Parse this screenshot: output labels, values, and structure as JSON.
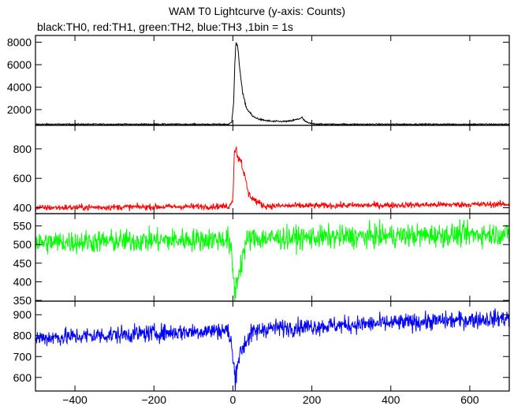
{
  "title": "WAM T0 Lightcurve (y-axis: Counts)",
  "subtitle": "black:TH0, red:TH1, green:TH2, blue:TH3 ,1bin = 1s",
  "chart_data": {
    "type": "line",
    "x_range": [
      -500,
      700
    ],
    "x_ticks": [
      -400,
      -200,
      0,
      200,
      400,
      600
    ],
    "grid": false,
    "panels": [
      {
        "name": "TH0",
        "color": "#000000",
        "ylim": [
          600,
          8600
        ],
        "y_ticks": [
          2000,
          4000,
          6000,
          8000
        ],
        "baseline": 700,
        "noise": 40,
        "trend": 0,
        "profile": [
          [
            -500,
            0
          ],
          [
            -10,
            0
          ],
          [
            -3,
            200
          ],
          [
            2,
            2000
          ],
          [
            5,
            5500
          ],
          [
            8,
            7300
          ],
          [
            12,
            6900
          ],
          [
            18,
            4800
          ],
          [
            25,
            2700
          ],
          [
            35,
            1400
          ],
          [
            50,
            700
          ],
          [
            70,
            400
          ],
          [
            100,
            250
          ],
          [
            140,
            250
          ],
          [
            150,
            320
          ],
          [
            165,
            450
          ],
          [
            175,
            600
          ],
          [
            180,
            350
          ],
          [
            190,
            120
          ],
          [
            200,
            60
          ],
          [
            220,
            0
          ],
          [
            700,
            0
          ]
        ]
      },
      {
        "name": "TH1",
        "color": "#ff0000",
        "ylim": [
          360,
          960
        ],
        "y_ticks": [
          400,
          600,
          800
        ],
        "baseline": 400,
        "noise": 15,
        "trend": 0.02,
        "profile": [
          [
            -500,
            0
          ],
          [
            -8,
            0
          ],
          [
            0,
            60
          ],
          [
            4,
            380
          ],
          [
            8,
            400
          ],
          [
            12,
            330
          ],
          [
            20,
            320
          ],
          [
            30,
            200
          ],
          [
            40,
            80
          ],
          [
            60,
            30
          ],
          [
            80,
            0
          ],
          [
            700,
            0
          ]
        ]
      },
      {
        "name": "TH2",
        "color": "#00ff00",
        "ylim": [
          348,
          583
        ],
        "y_ticks": [
          350,
          400,
          450,
          500,
          550
        ],
        "baseline": 505,
        "noise": 22,
        "trend": 0.02,
        "profile": [
          [
            -500,
            0
          ],
          [
            -12,
            0
          ],
          [
            -4,
            -40
          ],
          [
            2,
            -110
          ],
          [
            6,
            -150
          ],
          [
            10,
            -110
          ],
          [
            18,
            -80
          ],
          [
            28,
            -30
          ],
          [
            40,
            0
          ],
          [
            700,
            0
          ]
        ]
      },
      {
        "name": "TH3",
        "color": "#0000ff",
        "ylim": [
          535,
          965
        ],
        "y_ticks": [
          600,
          700,
          800,
          900
        ],
        "baseline": 788,
        "noise": 30,
        "trend": 0.08,
        "profile": [
          [
            -500,
            0
          ],
          [
            -15,
            0
          ],
          [
            -5,
            -50
          ],
          [
            2,
            -180
          ],
          [
            6,
            -230
          ],
          [
            12,
            -150
          ],
          [
            22,
            -100
          ],
          [
            35,
            -50
          ],
          [
            50,
            -20
          ],
          [
            80,
            0
          ],
          [
            700,
            0
          ]
        ]
      }
    ]
  }
}
